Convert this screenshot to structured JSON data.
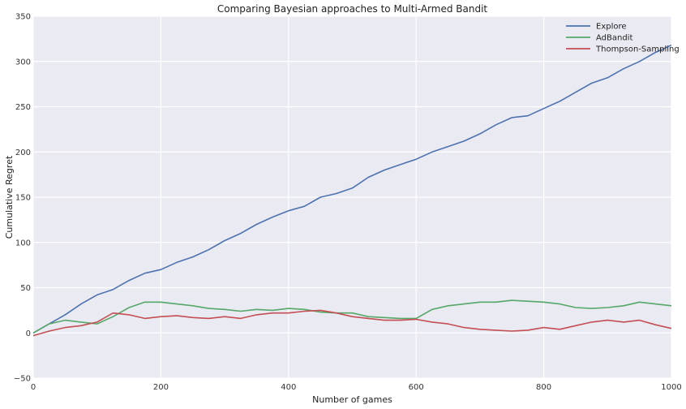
{
  "chart_data": {
    "type": "line",
    "title": "Comparing Bayesian approaches to Multi-Armed Bandit",
    "xlabel": "Number of games",
    "ylabel": "Cumulative Regret",
    "xlim": [
      0,
      1000
    ],
    "ylim": [
      -50,
      350
    ],
    "xticks": [
      0,
      200,
      400,
      600,
      800,
      1000
    ],
    "yticks": [
      -50,
      0,
      50,
      100,
      150,
      200,
      250,
      300,
      350
    ],
    "xtick_labels": [
      "0",
      "200",
      "400",
      "600",
      "800",
      "1000"
    ],
    "ytick_labels": [
      "−50",
      "0",
      "50",
      "100",
      "150",
      "200",
      "250",
      "300",
      "350"
    ],
    "grid": true,
    "legend_position": "top-right",
    "background": "#eaeaf2",
    "series": [
      {
        "name": "Explore",
        "color": "#4c72b0",
        "x": [
          0,
          25,
          50,
          75,
          100,
          125,
          150,
          175,
          200,
          225,
          250,
          275,
          300,
          325,
          350,
          375,
          400,
          425,
          450,
          475,
          500,
          525,
          550,
          575,
          600,
          625,
          650,
          675,
          700,
          725,
          750,
          775,
          800,
          825,
          850,
          875,
          900,
          925,
          950,
          975,
          1000
        ],
        "y": [
          0,
          10,
          20,
          32,
          42,
          48,
          58,
          66,
          70,
          78,
          84,
          92,
          102,
          110,
          120,
          128,
          135,
          140,
          150,
          154,
          160,
          172,
          180,
          186,
          192,
          200,
          206,
          212,
          220,
          230,
          238,
          240,
          248,
          256,
          266,
          276,
          282,
          292,
          300,
          310,
          318
        ]
      },
      {
        "name": "AdBandit",
        "color": "#55a868",
        "x": [
          0,
          25,
          50,
          75,
          100,
          125,
          150,
          175,
          200,
          225,
          250,
          275,
          300,
          325,
          350,
          375,
          400,
          425,
          450,
          475,
          500,
          525,
          550,
          575,
          600,
          625,
          650,
          675,
          700,
          725,
          750,
          775,
          800,
          825,
          850,
          875,
          900,
          925,
          950,
          975,
          1000
        ],
        "y": [
          0,
          10,
          14,
          12,
          10,
          18,
          28,
          34,
          34,
          32,
          30,
          27,
          26,
          24,
          26,
          25,
          27,
          26,
          23,
          22,
          22,
          18,
          17,
          16,
          16,
          26,
          30,
          32,
          34,
          34,
          36,
          35,
          34,
          32,
          28,
          27,
          28,
          30,
          34,
          32,
          30
        ]
      },
      {
        "name": "Thompson-Sampling",
        "color": "#c44e52",
        "x": [
          0,
          25,
          50,
          75,
          100,
          125,
          150,
          175,
          200,
          225,
          250,
          275,
          300,
          325,
          350,
          375,
          400,
          425,
          450,
          475,
          500,
          525,
          550,
          575,
          600,
          625,
          650,
          675,
          700,
          725,
          750,
          775,
          800,
          825,
          850,
          875,
          900,
          925,
          950,
          975,
          1000
        ],
        "y": [
          -3,
          2,
          6,
          8,
          12,
          22,
          20,
          16,
          18,
          19,
          17,
          16,
          18,
          16,
          20,
          22,
          22,
          24,
          25,
          22,
          18,
          16,
          14,
          14,
          15,
          12,
          10,
          6,
          4,
          3,
          2,
          3,
          6,
          4,
          8,
          12,
          14,
          12,
          14,
          9,
          5
        ]
      }
    ]
  }
}
